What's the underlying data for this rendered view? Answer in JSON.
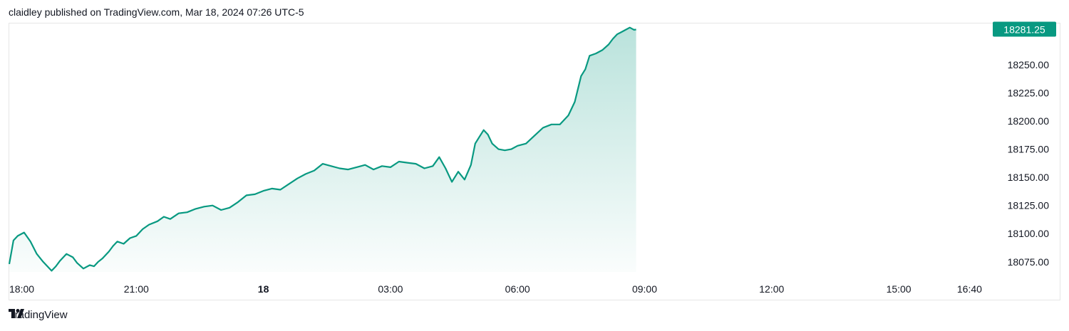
{
  "header": {
    "text": "claidley published on TradingView.com, Mar 18, 2024 07:26 UTC-5"
  },
  "footer": {
    "brand": "TradingView"
  },
  "colors": {
    "line": "#089981",
    "fill_top": "#089981",
    "price_badge": "#089981",
    "grid_border": "#e6e6e6",
    "text": "#131722"
  },
  "chart_data": {
    "type": "area",
    "title": "",
    "xlabel": "",
    "ylabel": "",
    "last_price_label": "18281.25",
    "y_ticks": [
      "18250.00",
      "18225.00",
      "18200.00",
      "18175.00",
      "18150.00",
      "18125.00",
      "18100.00",
      "18075.00"
    ],
    "y_tick_values": [
      18250,
      18225,
      18200,
      18175,
      18150,
      18125,
      18100,
      18075
    ],
    "ylim": [
      18066,
      18286
    ],
    "x_ticks": [
      {
        "label": "18:00",
        "hours": 0,
        "bold": false
      },
      {
        "label": "21:00",
        "hours": 3,
        "bold": false
      },
      {
        "label": "18",
        "hours": 6,
        "bold": true
      },
      {
        "label": "03:00",
        "hours": 9,
        "bold": false
      },
      {
        "label": "06:00",
        "hours": 12,
        "bold": false
      },
      {
        "label": "09:00",
        "hours": 15,
        "bold": false
      },
      {
        "label": "12:00",
        "hours": 18,
        "bold": false
      },
      {
        "label": "15:00",
        "hours": 21,
        "bold": false
      },
      {
        "label": "16:40",
        "hours": 22.67,
        "bold": false
      }
    ],
    "xlim_hours": [
      0,
      23.0
    ],
    "x_hours": [
      0,
      0.1,
      0.2,
      0.35,
      0.5,
      0.65,
      0.8,
      1.0,
      1.1,
      1.2,
      1.35,
      1.5,
      1.6,
      1.75,
      1.9,
      2.0,
      2.1,
      2.2,
      2.35,
      2.45,
      2.55,
      2.7,
      2.85,
      3.0,
      3.15,
      3.3,
      3.5,
      3.65,
      3.8,
      4.0,
      4.2,
      4.4,
      4.6,
      4.8,
      5.0,
      5.2,
      5.4,
      5.6,
      5.8,
      6.0,
      6.2,
      6.4,
      6.6,
      6.8,
      7.0,
      7.2,
      7.4,
      7.6,
      7.8,
      8.0,
      8.2,
      8.4,
      8.6,
      8.8,
      9.0,
      9.2,
      9.4,
      9.6,
      9.8,
      10.0,
      10.15,
      10.3,
      10.45,
      10.6,
      10.75,
      10.9,
      11.0,
      11.1,
      11.2,
      11.3,
      11.4,
      11.55,
      11.7,
      11.85,
      12.0,
      12.2,
      12.4,
      12.6,
      12.8,
      13.0,
      13.2,
      13.35,
      13.5,
      13.6,
      13.7,
      13.85,
      14.0,
      14.15,
      14.25,
      14.35,
      14.45,
      14.55,
      14.65,
      14.75,
      14.8
    ],
    "values": [
      18073,
      18094,
      18098,
      18101,
      18093,
      18082,
      18075,
      18067,
      18071,
      18076,
      18082,
      18079,
      18074,
      18069,
      18072,
      18071,
      18075,
      18078,
      18084,
      18089,
      18093,
      18091,
      18096,
      18098,
      18104,
      18108,
      18111,
      18115,
      18113,
      18118,
      18119,
      18122,
      18124,
      18125,
      18121,
      18123,
      18128,
      18134,
      18135,
      18138,
      18140,
      18139,
      18144,
      18149,
      18153,
      18156,
      18162,
      18160,
      18158,
      18157,
      18159,
      18161,
      18157,
      18160,
      18159,
      18164,
      18163,
      18162,
      18158,
      18160,
      18168,
      18158,
      18146,
      18155,
      18148,
      18161,
      18180,
      18186,
      18192,
      18188,
      18180,
      18175,
      18174,
      18175,
      18178,
      18180,
      18187,
      18194,
      18197,
      18197,
      18205,
      18217,
      18240,
      18246,
      18258,
      18260,
      18263,
      18268,
      18273,
      18277,
      18279,
      18281,
      18283,
      18281,
      18281.25
    ]
  }
}
